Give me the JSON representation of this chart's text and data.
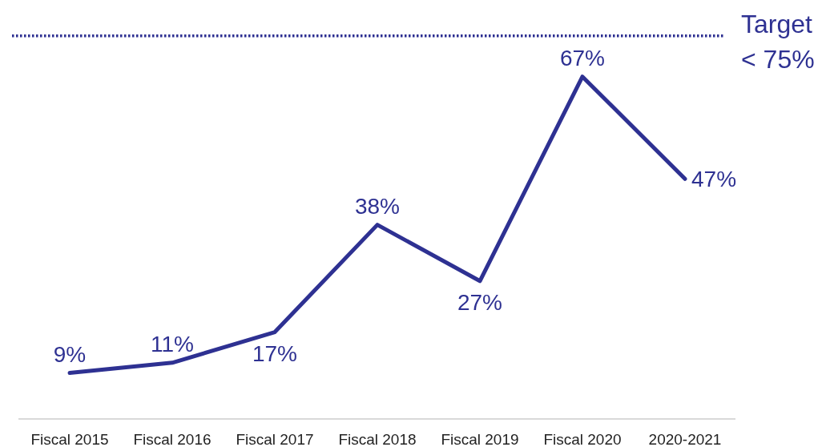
{
  "chart_data": {
    "type": "line",
    "categories": [
      "Fiscal 2015",
      "Fiscal 2016",
      "Fiscal 2017",
      "Fiscal 2018",
      "Fiscal 2019",
      "Fiscal 2020",
      "2020-2021"
    ],
    "series": [
      {
        "color": "#2e3192",
        "values": [
          9,
          11,
          17,
          38,
          27,
          67,
          47
        ],
        "value_labels": [
          "9%",
          "11%",
          "17%",
          "38%",
          "27%",
          "67%",
          "47%"
        ]
      }
    ],
    "ylim": [
      0,
      82
    ],
    "marker": "none",
    "line_style": "solid",
    "tick_labels": "x",
    "ref_lines": [
      {
        "axis": "y",
        "value": 75,
        "label": "Target < 75%",
        "color": "#2e3192",
        "line_style": "dotted"
      }
    ]
  }
}
